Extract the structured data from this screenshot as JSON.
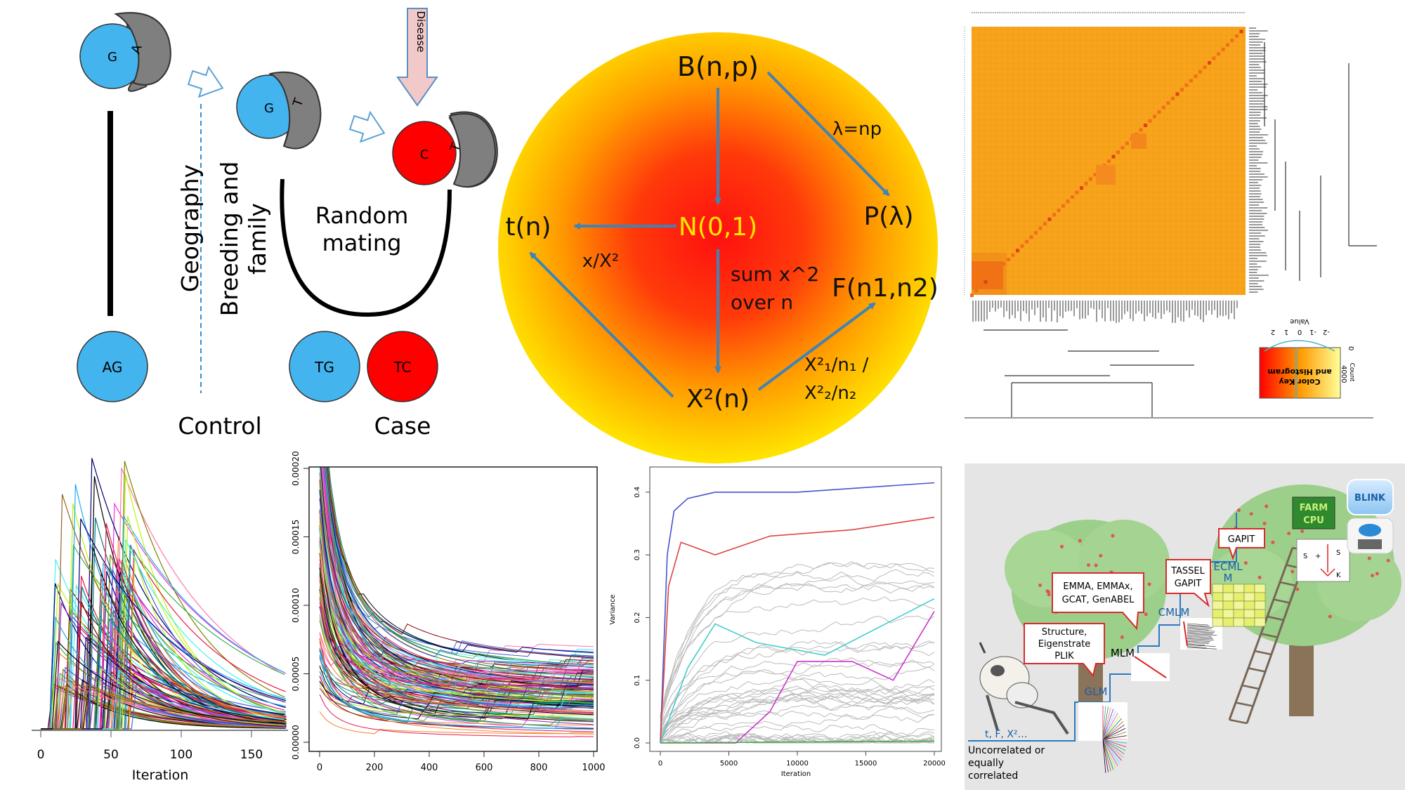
{
  "panel_genetics": {
    "allele_g": "G",
    "allele_a": "A",
    "allele_t": "T",
    "allele_c": "C",
    "disease": "Disease",
    "geography": "Geography",
    "breeding_1": "Breeding and",
    "breeding_2": "family",
    "random_1": "Random",
    "random_2": "mating",
    "genotype_ag": "AG",
    "genotype_tg": "TG",
    "genotype_tc": "TC",
    "control": "Control",
    "case": "Case"
  },
  "panel_distributions": {
    "binomial": "B(n,p)",
    "normal": "N(0,1)",
    "student": "t(n)",
    "poisson": "P(λ)",
    "fisher": "F(n1,n2)",
    "chisq": "X²(n)",
    "lambda_np": "λ=np",
    "x_over_x2": "x/X²",
    "sum_1": "sum x^2",
    "sum_2": "over n",
    "ratio_1": "X²₁/n₁  /",
    "ratio_2": "X²₂/n₂"
  },
  "panel_heatmap": {
    "color_key_1": "Color Key",
    "color_key_2": "and Histogram",
    "value_label": "Value",
    "count_label": "Count",
    "ticks": [
      "-2",
      "-1",
      "0",
      "1",
      "2"
    ],
    "count_ticks": [
      "0",
      "4000"
    ],
    "colors": {
      "low": "#ff0000",
      "mid": "#ff9900",
      "high": "#ffff99"
    }
  },
  "chart_data": [
    {
      "type": "line",
      "xlabel": "Iteration",
      "ylabel": "",
      "xlim": [
        0,
        175
      ],
      "x_ticks": [
        "0",
        "50",
        "100",
        "150"
      ],
      "note": ""
    },
    {
      "type": "line",
      "xlabel": "",
      "ylabel": "",
      "xlim": [
        0,
        1000
      ],
      "ylim": [
        0,
        0.0002
      ],
      "x_ticks": [
        "0",
        "200",
        "400",
        "600",
        "800",
        "1000"
      ],
      "y_ticks": [
        "0.00000",
        "0.00005",
        "0.00010",
        "0.00015",
        "0.00020"
      ]
    },
    {
      "type": "line",
      "xlabel": "Iteration",
      "ylabel": "Variance",
      "xlim": [
        0,
        20000
      ],
      "ylim": [
        0,
        0.42
      ],
      "x_ticks": [
        "0",
        "5000",
        "10000",
        "15000",
        "20000"
      ],
      "y_ticks": [
        "0.0",
        "0.1",
        "0.2",
        "0.3",
        "0.4"
      ],
      "series": [
        {
          "color": "#4455cc",
          "values": [
            [
              0,
              0
            ],
            [
              500,
              0.3
            ],
            [
              1000,
              0.37
            ],
            [
              2000,
              0.39
            ],
            [
              4000,
              0.4
            ],
            [
              10000,
              0.4
            ],
            [
              20000,
              0.415
            ]
          ]
        },
        {
          "color": "#dd4444",
          "values": [
            [
              0,
              0
            ],
            [
              600,
              0.25
            ],
            [
              1500,
              0.32
            ],
            [
              4000,
              0.3
            ],
            [
              8000,
              0.33
            ],
            [
              14000,
              0.34
            ],
            [
              20000,
              0.36
            ]
          ]
        },
        {
          "color": "#44cccc",
          "values": [
            [
              0,
              0
            ],
            [
              2000,
              0.12
            ],
            [
              4000,
              0.19
            ],
            [
              7000,
              0.16
            ],
            [
              12000,
              0.14
            ],
            [
              20000,
              0.23
            ]
          ]
        },
        {
          "color": "#cc33cc",
          "values": [
            [
              0,
              0
            ],
            [
              5500,
              0.0
            ],
            [
              8000,
              0.05
            ],
            [
              10000,
              0.13
            ],
            [
              14000,
              0.13
            ],
            [
              17000,
              0.1
            ],
            [
              20000,
              0.21
            ]
          ]
        },
        {
          "color": "#44aa44",
          "values": [
            [
              0,
              0
            ],
            [
              20000,
              0.003
            ]
          ]
        }
      ]
    }
  ],
  "panel_methods": {
    "gapit_top": "GAPIT",
    "tassel_1": "TASSEL",
    "tassel_2": "GAPIT",
    "ecml_1": "ECML",
    "ecml_2": "M",
    "cmlm": "CMLM",
    "emma_1": "EMMA, EMMAx,",
    "emma_2": "GCAT, GenABEL",
    "structure_1": "Structure,",
    "structure_2": "Eigenstrate",
    "structure_3": "PLIK",
    "mlm": "MLM",
    "glm": "GLM",
    "stats": "t, F, X²…",
    "unc_1": "Uncorrelated or",
    "unc_2": "equally",
    "unc_3": "correlated",
    "farm_1": "FARM",
    "farm_2": "CPU",
    "blink": "BLINK",
    "colors": {
      "blue": "#2a7abf",
      "red": "#d62c2c",
      "tree": "#9ccf8a",
      "bg": "#e5e5e5"
    }
  }
}
